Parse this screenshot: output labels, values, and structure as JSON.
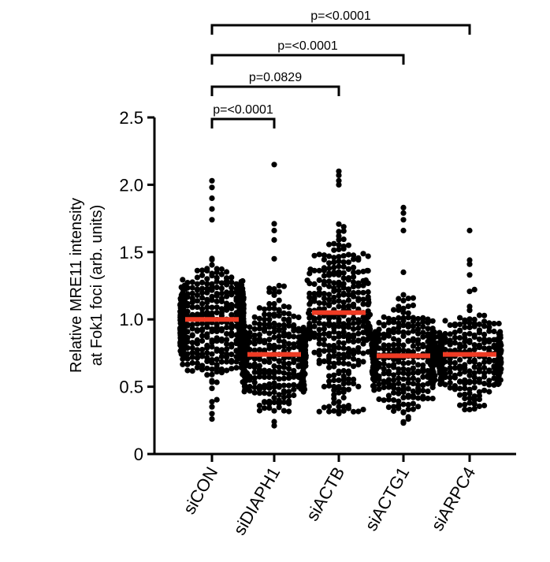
{
  "chart_data": {
    "type": "scatter",
    "ylabel_line1": "Relative MRE11 intensity",
    "ylabel_line2": "at Fok1 foci (arb. units)",
    "ylim": [
      0,
      2.5
    ],
    "yticks": [
      "0",
      "0.5",
      "1.0",
      "1.5",
      "2.0",
      "2.5"
    ],
    "categories": [
      "siCON",
      "siDIAPH1",
      "siACTB",
      "siACTG1",
      "siARPC4"
    ],
    "means": [
      1.0,
      0.74,
      1.05,
      0.73,
      0.74
    ],
    "groups": [
      {
        "name": "siCON",
        "n": 700,
        "center": 0.98,
        "spread": 0.17,
        "min": 0.26,
        "max": 2.03,
        "outliers": [
          2.03,
          1.98,
          1.9,
          1.82,
          1.74,
          0.26,
          0.3,
          0.35
        ]
      },
      {
        "name": "siDIAPH1",
        "n": 420,
        "center": 0.72,
        "spread": 0.19,
        "min": 0.2,
        "max": 2.15,
        "outliers": [
          2.15,
          1.71,
          1.66,
          1.59,
          1.45,
          0.21,
          0.24
        ]
      },
      {
        "name": "siACTB",
        "n": 340,
        "center": 1.0,
        "spread": 0.34,
        "min": 0.3,
        "max": 2.1,
        "outliers": [
          2.1,
          2.07,
          2.03,
          2.0,
          0.3,
          0.33
        ]
      },
      {
        "name": "siACTG1",
        "n": 380,
        "center": 0.71,
        "spread": 0.18,
        "min": 0.23,
        "max": 1.83,
        "outliers": [
          1.83,
          1.79,
          1.74,
          1.66,
          1.35,
          0.23,
          0.26
        ]
      },
      {
        "name": "siARPC4",
        "n": 330,
        "center": 0.72,
        "spread": 0.15,
        "min": 0.33,
        "max": 1.66,
        "outliers": [
          1.66,
          1.44,
          1.41,
          1.33,
          0.33,
          0.36
        ]
      }
    ],
    "comparisons": [
      {
        "from": "siCON",
        "to": "siDIAPH1",
        "label": "p=<0.0001"
      },
      {
        "from": "siCON",
        "to": "siACTB",
        "label": "p=0.0829"
      },
      {
        "from": "siCON",
        "to": "siACTG1",
        "label": "p=<0.0001"
      },
      {
        "from": "siCON",
        "to": "siARPC4",
        "label": "p=<0.0001"
      }
    ],
    "point_color": "#000000",
    "mean_color": "#ee3b24"
  }
}
